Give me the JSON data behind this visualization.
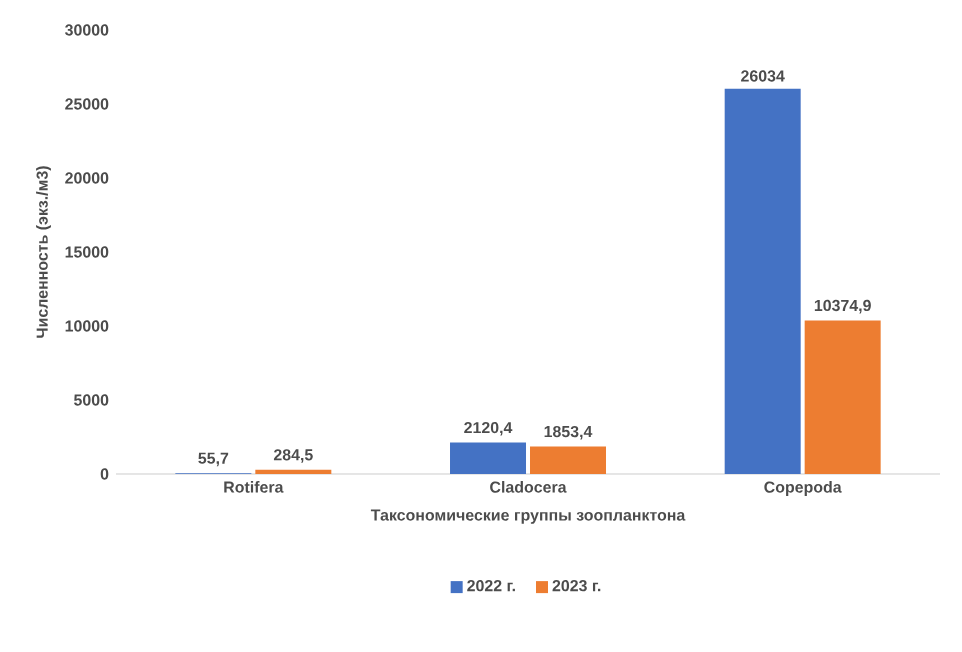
{
  "chart_data": {
    "type": "bar",
    "xlabel": "Таксономические группы зоопланктона",
    "ylabel": "Численность (экз./м3)",
    "categories": [
      "Rotifera",
      "Cladocera",
      "Copepoda"
    ],
    "series": [
      {
        "name": "2022 г.",
        "color": "#4472c4",
        "values": [
          55.7,
          2120.4,
          26034
        ],
        "value_labels": [
          "55,7",
          "2120,4",
          "26034"
        ]
      },
      {
        "name": "2023 г.",
        "color": "#ed7d31",
        "values": [
          284.5,
          1853.4,
          10374.9
        ],
        "value_labels": [
          "284,5",
          "1853,4",
          "10374,9"
        ]
      }
    ],
    "ylim": [
      0,
      30000
    ],
    "yticks": [
      0,
      5000,
      10000,
      15000,
      20000,
      25000,
      30000
    ],
    "grid": false,
    "legend": "bottom"
  }
}
